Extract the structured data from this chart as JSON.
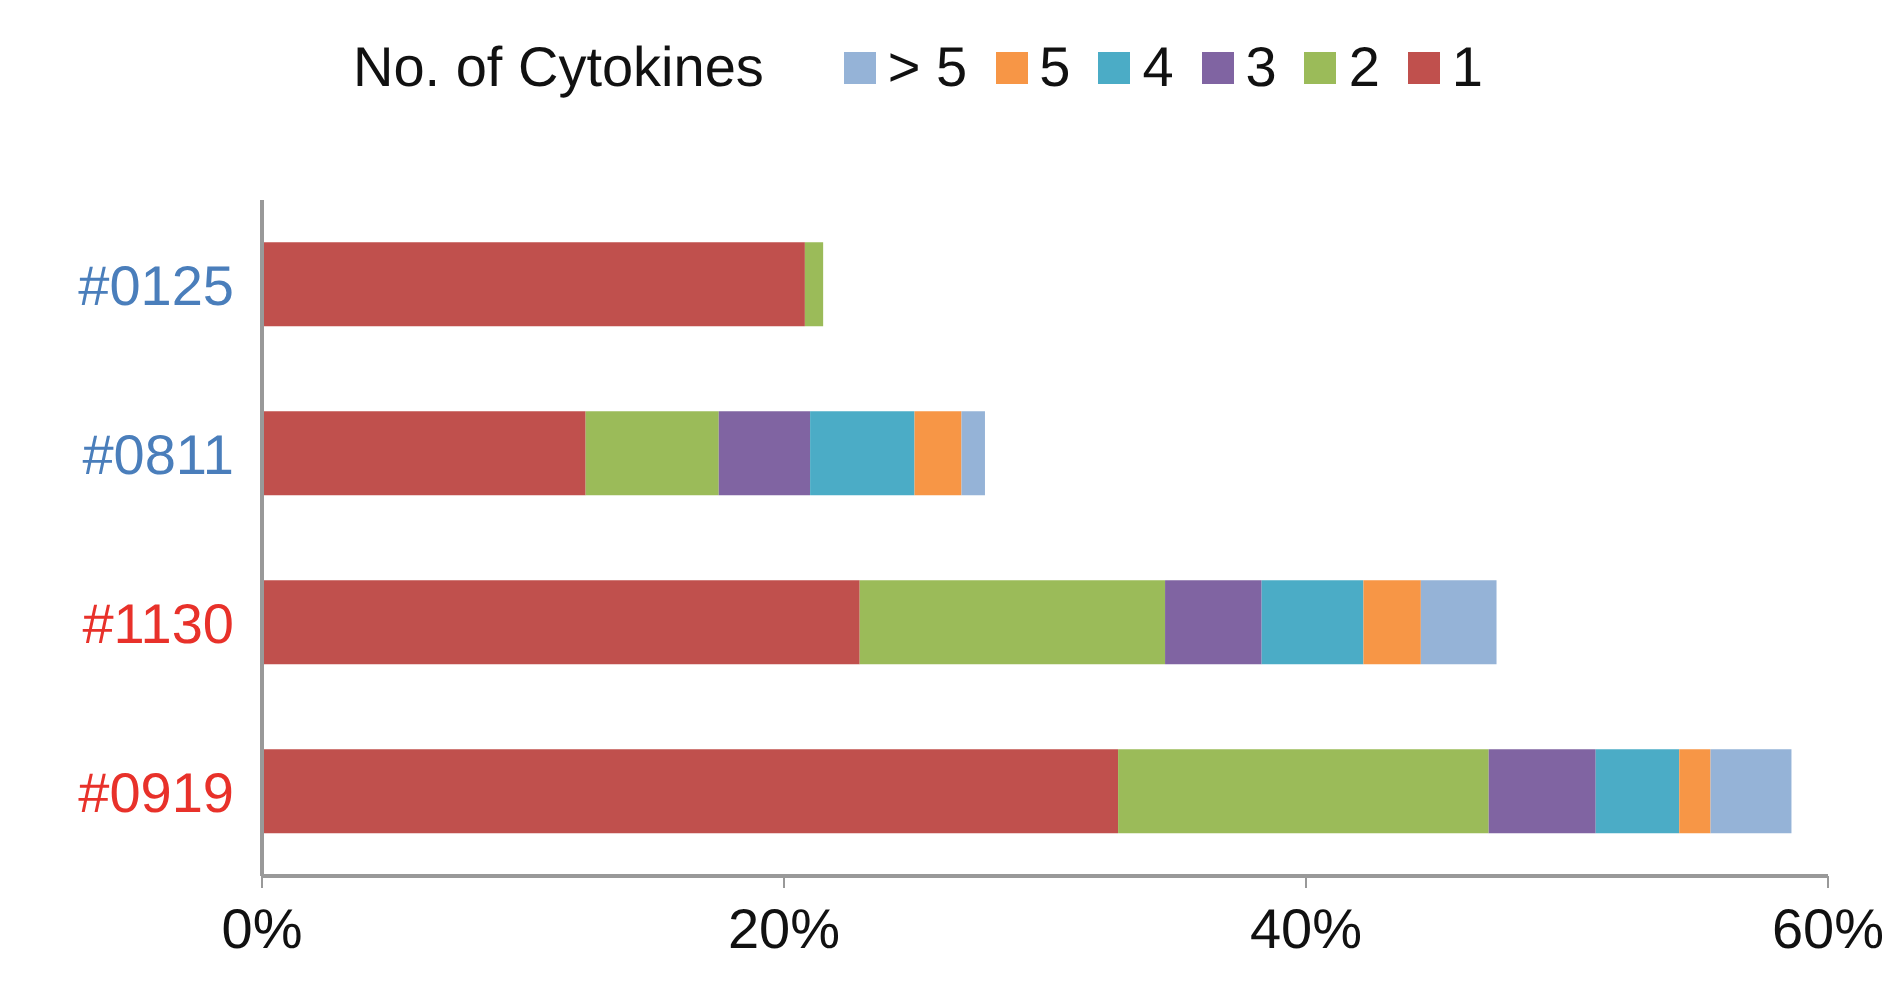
{
  "chart_data": {
    "type": "bar",
    "orientation": "horizontal",
    "stacked": true,
    "legend_title": "No. of Cytokines",
    "legend": "top",
    "categories": [
      "#0125",
      "#0811",
      "#1130",
      "#0919"
    ],
    "series": [
      {
        "name": "1",
        "color": "#c0504d",
        "values": [
          20.8,
          12.4,
          22.9,
          32.8
        ]
      },
      {
        "name": "2",
        "color": "#9bbb59",
        "values": [
          0.7,
          5.1,
          11.7,
          14.2
        ]
      },
      {
        "name": "3",
        "color": "#8064a2",
        "values": [
          null,
          3.5,
          3.7,
          4.1
        ]
      },
      {
        "name": "4",
        "color": "#4bacc6",
        "values": [
          null,
          4.0,
          3.9,
          3.2
        ]
      },
      {
        "name": "5",
        "color": "#f79646",
        "values": [
          null,
          1.8,
          2.2,
          1.2
        ]
      },
      {
        "name": "> 5",
        "color": "#95b3d7",
        "values": [
          null,
          0.9,
          2.9,
          3.1
        ]
      }
    ],
    "xlim": [
      0,
      60
    ],
    "xticks": [
      {
        "value": 0,
        "label": "0%"
      },
      {
        "value": 20,
        "label": "20%"
      },
      {
        "value": 40,
        "label": "40%"
      },
      {
        "value": 60,
        "label": "60%"
      }
    ],
    "grid": false
  }
}
